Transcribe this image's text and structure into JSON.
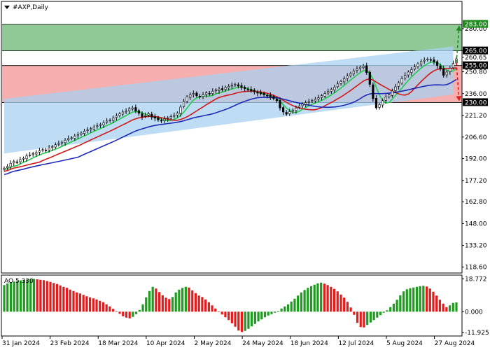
{
  "chart_data": {
    "type": "candlestick",
    "title": "#AXP,Daily",
    "xlabel": "",
    "ylabel": "",
    "x_tick_labels": [
      "31 Jan 2024",
      "23 Feb 2024",
      "18 Mar 2024",
      "10 Apr 2024",
      "2 May 2024",
      "24 May 2024",
      "18 Jun 2024",
      "12 Jul 2024",
      "5 Aug 2024",
      "27 Aug 2024"
    ],
    "y_tick_labels": [
      280.0,
      265.0,
      260.65,
      250.8,
      236.0,
      221.2,
      206.6,
      192.0,
      177.2,
      162.8,
      148.0,
      133.2,
      118.6
    ],
    "ylim": [
      115,
      298
    ],
    "price_tags": [
      {
        "value": 283.0,
        "label": "283.00",
        "color": "#1e8a1e"
      },
      {
        "value": 265.0,
        "label": "265.00",
        "color": "#000000"
      },
      {
        "value": 255.0,
        "label": "255.00",
        "color": "#000000"
      },
      {
        "value": 230.0,
        "label": "230.00",
        "color": "#000000"
      }
    ],
    "zones": [
      {
        "name": "green-zone",
        "from": 265.0,
        "to": 283.0,
        "color": "#7dbf84"
      },
      {
        "name": "red-zone",
        "from": 230.0,
        "to": 255.0,
        "color": "#f5a0a0"
      }
    ],
    "channel": {
      "color": "#a8d0f0",
      "start": [
        0,
        195.5,
        232.5
      ],
      "end": [
        140,
        235.5,
        268.0
      ]
    },
    "closes": [
      185.5,
      186.7,
      188.8,
      190.1,
      189.6,
      191.3,
      192.2,
      193.8,
      194.5,
      195.4,
      196.1,
      197.3,
      198.1,
      197.6,
      199.2,
      200.1,
      201.4,
      202.2,
      203.1,
      204.4,
      205.6,
      206.1,
      207.2,
      208.1,
      209.3,
      210.6,
      211.4,
      212.3,
      213.4,
      214.2,
      215.1,
      216.3,
      217.4,
      218.1,
      219.6,
      220.8,
      222.4,
      223.6,
      224.1,
      225.8,
      226.3,
      224.2,
      222.7,
      220.3,
      221.2,
      222.4,
      220.1,
      219.4,
      218.2,
      217.4,
      218.8,
      219.6,
      220.4,
      221.2,
      222.8,
      226.9,
      230.6,
      233.8,
      235.2,
      236.1,
      234.6,
      233.8,
      235.2,
      236.5,
      235.8,
      237.6,
      238.4,
      239.1,
      238.6,
      240.2,
      240.9,
      241.6,
      242.3,
      241.1,
      240.1,
      239.4,
      238.6,
      238.1,
      237.2,
      236.4,
      235.9,
      235.2,
      234.6,
      233.8,
      232.7,
      231.2,
      226.3,
      223.6,
      222.1,
      223.8,
      224.9,
      226.3,
      227.6,
      228.9,
      229.8,
      230.6,
      231.4,
      232.1,
      233.2,
      234.6,
      236.1,
      237.4,
      238.9,
      240.4,
      242.6,
      244.3,
      246.1,
      247.9,
      249.6,
      251.4,
      252.7,
      253.9,
      254.6,
      250.2,
      242.3,
      232.6,
      226.4,
      228.6,
      231.2,
      233.6,
      235.1,
      237.8,
      240.6,
      243.4,
      246.2,
      248.4,
      250.6,
      252.3,
      254.1,
      256.2,
      257.8,
      258.6,
      259.4,
      258.6,
      257.4,
      255.1,
      252.6,
      248.4,
      250.6,
      253.2,
      256.4,
      259.6
    ],
    "open_dir": [
      1,
      1,
      -1,
      1,
      -1,
      1,
      1,
      -1,
      1,
      1,
      -1,
      1,
      1,
      -1,
      1,
      1,
      -1,
      1,
      1,
      -1,
      1,
      1,
      -1,
      1,
      1,
      -1,
      1,
      1,
      -1,
      1,
      1,
      -1,
      1,
      1,
      -1,
      1,
      1,
      -1,
      1,
      1,
      -1,
      1,
      1,
      -1,
      1,
      1,
      -1,
      1,
      1,
      -1,
      1,
      1,
      -1,
      1,
      1,
      -1,
      1,
      1,
      -1,
      1,
      1,
      -1,
      1,
      1,
      -1,
      1,
      1,
      -1,
      1,
      1,
      -1,
      1,
      1,
      -1,
      1,
      1,
      -1,
      1,
      1,
      -1,
      1,
      1,
      -1,
      1,
      1,
      -1,
      1,
      1,
      -1,
      1,
      1,
      -1,
      1,
      1,
      -1,
      1,
      1,
      -1,
      1,
      1,
      -1,
      1,
      1,
      -1,
      1,
      1,
      -1,
      1,
      1,
      -1,
      1,
      1,
      -1,
      1,
      1,
      -1,
      1,
      1,
      -1,
      1,
      1,
      -1,
      1,
      1,
      -1,
      1,
      1,
      -1,
      1,
      1,
      -1,
      1,
      1,
      -1,
      1,
      1,
      -1,
      1
    ],
    "moving_averages": [
      {
        "name": "fast",
        "color": "#22c84a",
        "period": 5
      },
      {
        "name": "medium",
        "color": "#d01818",
        "period": 12
      },
      {
        "name": "slow",
        "color": "#1f2ab8",
        "period": 24
      }
    ],
    "oscillator": {
      "name": "AO",
      "label": "AO 5.330",
      "y_tick_labels": [
        18.772,
        0.0,
        -11.925
      ],
      "ylim": [
        -13.5,
        20.5
      ],
      "up_color": "#1f9b1f",
      "down_color": "#e21c1c",
      "values": [
        15.2,
        16.1,
        16.8,
        17.2,
        17.6,
        17.9,
        18.1,
        18.4,
        18.6,
        18.7,
        18.5,
        18.2,
        18.0,
        17.5,
        17.0,
        16.4,
        15.8,
        15.0,
        14.2,
        13.6,
        12.6,
        11.8,
        11.0,
        10.4,
        9.6,
        8.8,
        8.2,
        7.6,
        7.0,
        6.2,
        5.4,
        4.2,
        3.0,
        1.6,
        0.2,
        -1.2,
        -2.6,
        -3.4,
        -3.8,
        -3.0,
        -1.4,
        1.0,
        4.2,
        8.2,
        11.8,
        14.2,
        13.2,
        11.2,
        9.4,
        8.0,
        7.2,
        8.4,
        11.0,
        12.6,
        13.6,
        14.2,
        13.8,
        12.2,
        10.6,
        9.2,
        8.4,
        7.0,
        5.4,
        3.6,
        1.8,
        0.2,
        -1.6,
        -3.2,
        -4.8,
        -6.6,
        -8.6,
        -10.8,
        -11.6,
        -11.0,
        -9.8,
        -8.4,
        -7.0,
        -5.6,
        -4.4,
        -3.2,
        -2.2,
        -1.4,
        -0.6,
        0.4,
        1.8,
        3.0,
        4.2,
        5.8,
        7.4,
        9.2,
        11.0,
        12.4,
        13.6,
        14.6,
        15.4,
        16.2,
        16.6,
        16.0,
        15.2,
        14.2,
        13.0,
        11.6,
        9.8,
        8.0,
        5.6,
        2.4,
        -1.8,
        -6.4,
        -8.8,
        -9.0,
        -7.6,
        -6.2,
        -4.8,
        -3.4,
        -2.0,
        -0.6,
        0.8,
        2.6,
        4.6,
        6.8,
        9.4,
        11.6,
        12.8,
        13.4,
        13.8,
        14.2,
        14.6,
        14.8,
        14.4,
        13.2,
        11.4,
        9.2,
        6.8,
        4.6,
        2.6,
        3.6,
        5.0,
        5.3
      ]
    },
    "arrows": [
      {
        "name": "bull-target-arrow",
        "color": "#1e8a1e",
        "from_price": 257.0,
        "to_price": 282.0
      },
      {
        "name": "bear-target-arrow",
        "color": "#e21c1c",
        "from_price": 257.0,
        "to_price": 231.0
      }
    ]
  }
}
